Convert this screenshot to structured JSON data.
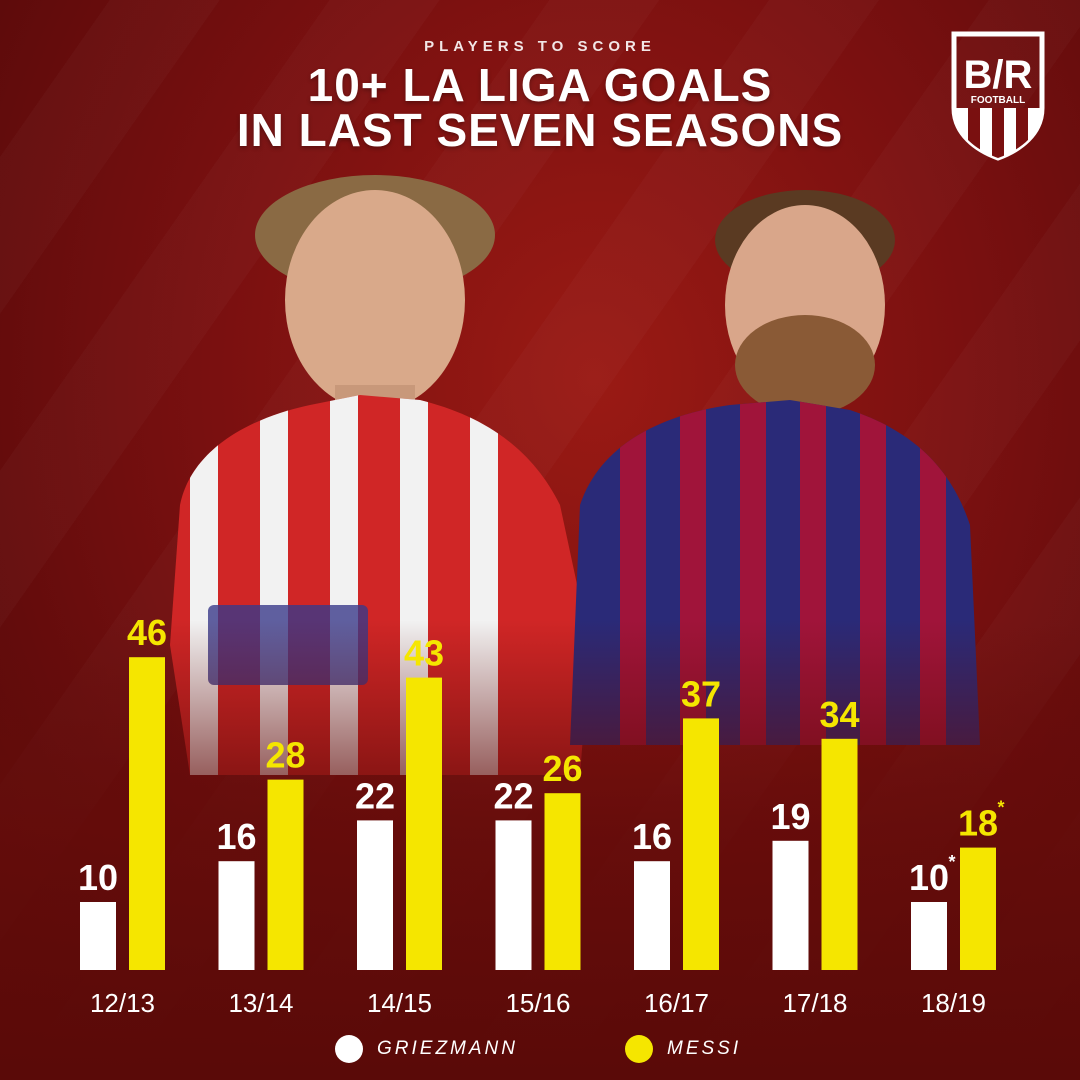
{
  "header": {
    "kicker": "PLAYERS TO SCORE",
    "title_line1": "10+ LA LIGA GOALS",
    "title_line2": "IN LAST SEVEN SEASONS"
  },
  "logo": {
    "top_text": "B/R",
    "bottom_text": "FOOTBALL"
  },
  "colors": {
    "griezmann": "#ffffff",
    "messi": "#f5e600",
    "background": "#7a1010"
  },
  "chart_data": {
    "type": "bar",
    "categories": [
      "12/13",
      "13/14",
      "14/15",
      "15/16",
      "16/17",
      "17/18",
      "18/19"
    ],
    "series": [
      {
        "name": "GRIEZMANN",
        "values": [
          10,
          16,
          22,
          22,
          16,
          19,
          10
        ],
        "labels": [
          "10",
          "16",
          "22",
          "22",
          "16",
          "19",
          "10*"
        ]
      },
      {
        "name": "MESSI",
        "values": [
          46,
          28,
          43,
          26,
          37,
          34,
          18
        ],
        "labels": [
          "46",
          "28",
          "43",
          "26",
          "37",
          "34",
          "18*"
        ]
      }
    ],
    "ylim": [
      0,
      50
    ],
    "grid": false,
    "legend_position": "bottom"
  },
  "legend": {
    "griezmann": "GRIEZMANN",
    "messi": "MESSI"
  },
  "icons": {
    "logo": "br-football-shield-icon"
  }
}
